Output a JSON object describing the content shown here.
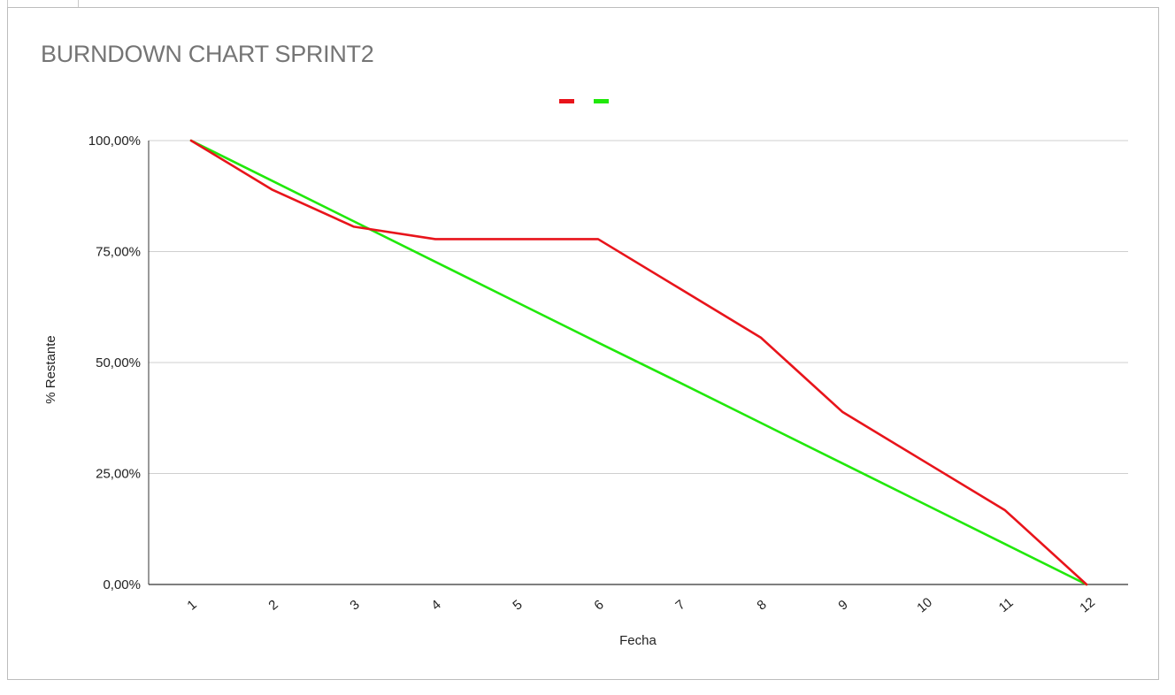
{
  "chart_data": {
    "type": "line",
    "title": "BURNDOWN CHART SPRINT2",
    "xlabel": "Fecha",
    "ylabel": "% Restante",
    "categories": [
      "1",
      "2",
      "3",
      "4",
      "5",
      "6",
      "7",
      "8",
      "9",
      "10",
      "11",
      "12"
    ],
    "ylim": [
      0,
      100
    ],
    "y_ticks": [
      0,
      25,
      50,
      75,
      100
    ],
    "y_tick_labels": [
      "0,00%",
      "25,00%",
      "50,00%",
      "75,00%",
      "100,00%"
    ],
    "grid": true,
    "legend": "top-center",
    "series": [
      {
        "color": "#e8141b",
        "values": [
          100,
          88.9,
          80.6,
          77.8,
          77.8,
          77.8,
          66.7,
          55.6,
          38.9,
          27.8,
          16.7,
          0
        ]
      },
      {
        "color": "#21e80b",
        "values": [
          100,
          90.9,
          81.8,
          72.7,
          63.6,
          54.5,
          45.5,
          36.4,
          27.3,
          18.2,
          9.1,
          0
        ]
      }
    ]
  }
}
